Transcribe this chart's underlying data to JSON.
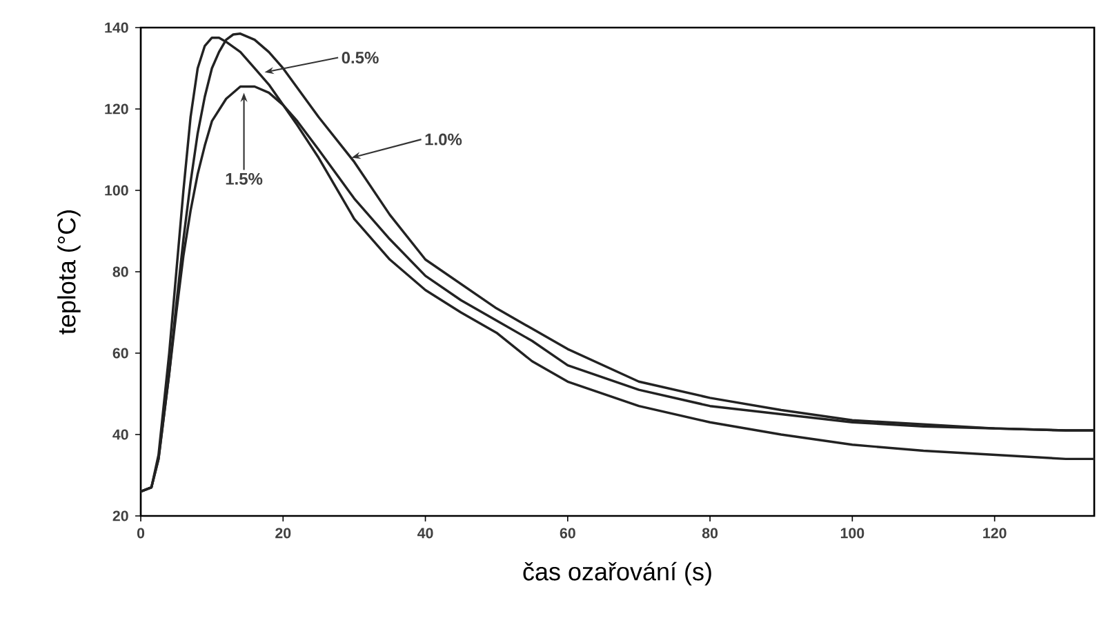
{
  "chart_data": {
    "type": "line",
    "xlabel": "čas ozařování (s)",
    "ylabel": "teplota (°C)",
    "xlim": [
      0,
      134
    ],
    "ylim": [
      20,
      140
    ],
    "xticks": [
      0,
      20,
      40,
      60,
      80,
      100,
      120
    ],
    "yticks": [
      20,
      40,
      60,
      80,
      100,
      120,
      140
    ],
    "grid": false,
    "marker": "none",
    "line_style": "solid",
    "series": [
      {
        "color": "#222222",
        "x": [
          0,
          1.5,
          2.5,
          4,
          5,
          6,
          7,
          8,
          9,
          10,
          11,
          12,
          14,
          16,
          18,
          20,
          22,
          25,
          28,
          30,
          35,
          40,
          45,
          50,
          55,
          60,
          65,
          70,
          80,
          90,
          100,
          110,
          120,
          130,
          134
        ],
        "values": [
          26,
          27,
          35,
          60,
          80,
          100,
          118,
          130,
          135.5,
          137.5,
          137.5,
          136.5,
          134,
          130,
          126,
          121,
          116,
          108,
          99,
          93,
          83,
          75.5,
          70,
          65,
          58,
          53,
          50,
          47,
          43,
          40,
          37.5,
          36,
          35,
          34,
          34
        ]
      },
      {
        "color": "#222222",
        "x": [
          0,
          1.5,
          2.5,
          4,
          5,
          6,
          7,
          8,
          9,
          10,
          11,
          12,
          13,
          14,
          16,
          18,
          20,
          25,
          30,
          35,
          40,
          45,
          50,
          55,
          60,
          65,
          70,
          80,
          90,
          100,
          110,
          120,
          130,
          134
        ],
        "values": [
          26,
          27,
          34,
          55,
          72,
          88,
          102,
          114,
          123,
          130,
          134,
          137,
          138.3,
          138.5,
          137,
          134,
          130,
          118,
          107,
          94,
          83,
          77,
          71,
          66,
          61,
          57,
          53,
          49,
          46,
          43.5,
          42.5,
          41.5,
          41,
          41
        ]
      },
      {
        "color": "#222222",
        "x": [
          0,
          1.5,
          2.5,
          4,
          5,
          6,
          7,
          8,
          9,
          10,
          12,
          14,
          16,
          18,
          20,
          22,
          25,
          30,
          35,
          40,
          45,
          50,
          55,
          60,
          65,
          70,
          80,
          90,
          100,
          110,
          120,
          130,
          134
        ],
        "values": [
          26,
          27,
          34,
          55,
          70,
          84,
          95,
          104,
          111,
          117,
          122.5,
          125.5,
          125.5,
          124,
          121,
          117,
          110,
          98,
          88,
          79,
          73,
          68,
          63,
          57,
          54,
          51,
          47,
          45,
          43,
          42,
          41.5,
          41,
          41
        ]
      }
    ],
    "annotations": [
      {
        "text": "0.5%",
        "x": 17.4,
        "y": 129
      },
      {
        "text": "1.0%",
        "x": 29.6,
        "y": 108
      },
      {
        "text": "1.5%",
        "x": 14.5,
        "y": 124
      }
    ]
  }
}
